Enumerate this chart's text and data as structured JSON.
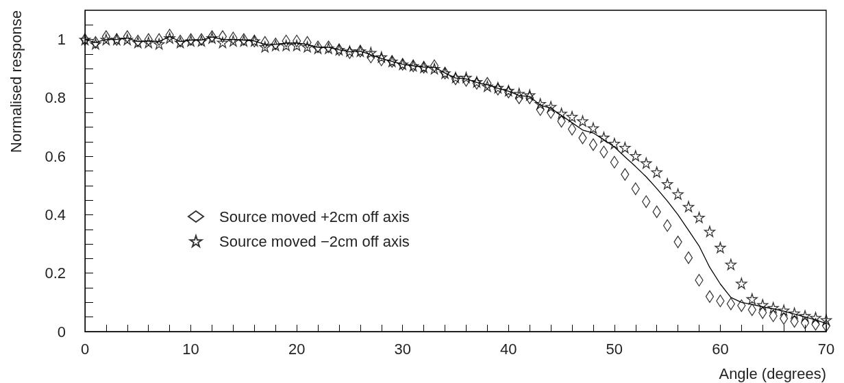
{
  "chart_data": {
    "type": "scatter",
    "xlabel": "Angle (degrees)",
    "ylabel": "Normalised response",
    "xlim": [
      0,
      70
    ],
    "xticks": [
      0,
      {
        "value": 2,
        "label": null
      },
      {
        "value": 4,
        "label": null
      },
      {
        "value": 6,
        "label": null
      },
      {
        "value": 8,
        "label": null
      },
      10,
      {
        "value": 12,
        "label": null
      },
      {
        "value": 14,
        "label": null
      },
      {
        "value": 16,
        "label": null
      },
      {
        "value": 18,
        "label": null
      },
      20,
      {
        "value": 22,
        "label": null
      },
      {
        "value": 24,
        "label": null
      },
      {
        "value": 26,
        "label": null
      },
      {
        "value": 28,
        "label": null
      },
      30,
      {
        "value": 32,
        "label": null
      },
      {
        "value": 34,
        "label": null
      },
      {
        "value": 36,
        "label": null
      },
      {
        "value": 38,
        "label": null
      },
      40,
      {
        "value": 42,
        "label": null
      },
      {
        "value": 44,
        "label": null
      },
      {
        "value": 46,
        "label": null
      },
      {
        "value": 48,
        "label": null
      },
      50,
      {
        "value": 52,
        "label": null
      },
      {
        "value": 54,
        "label": null
      },
      {
        "value": 56,
        "label": null
      },
      {
        "value": 58,
        "label": null
      },
      60,
      {
        "value": 62,
        "label": null
      },
      {
        "value": 64,
        "label": null
      },
      {
        "value": 66,
        "label": null
      },
      {
        "value": 68,
        "label": null
      },
      70
    ],
    "ylim": [
      0,
      1.1
    ],
    "yticks": [
      0,
      {
        "value": 0.05,
        "label": null
      },
      {
        "value": 0.1,
        "label": null
      },
      {
        "value": 0.15,
        "label": null
      },
      0.2,
      {
        "value": 0.25,
        "label": null
      },
      {
        "value": 0.3,
        "label": null
      },
      {
        "value": 0.35,
        "label": null
      },
      0.4,
      {
        "value": 0.45,
        "label": null
      },
      {
        "value": 0.5,
        "label": null
      },
      {
        "value": 0.55,
        "label": null
      },
      0.6,
      {
        "value": 0.65,
        "label": null
      },
      {
        "value": 0.7,
        "label": null
      },
      {
        "value": 0.75,
        "label": null
      },
      0.8,
      {
        "value": 0.85,
        "label": null
      },
      {
        "value": 0.9,
        "label": null
      },
      {
        "value": 0.95,
        "label": null
      },
      1,
      {
        "value": 1.05,
        "label": null
      }
    ],
    "grid": false,
    "legend": "left",
    "x": [
      0,
      1,
      2,
      3,
      4,
      5,
      6,
      7,
      8,
      9,
      10,
      11,
      12,
      13,
      14,
      15,
      16,
      17,
      18,
      19,
      20,
      21,
      22,
      23,
      24,
      25,
      26,
      27,
      28,
      29,
      30,
      31,
      32,
      33,
      34,
      35,
      36,
      37,
      38,
      39,
      40,
      41,
      42,
      43,
      44,
      45,
      46,
      47,
      48,
      49,
      50,
      51,
      52,
      53,
      54,
      55,
      56,
      57,
      58,
      59,
      60,
      61,
      62,
      63,
      64,
      65,
      66,
      67,
      68,
      69,
      70
    ],
    "series": [
      {
        "name": "Source moved +2cm off axis",
        "marker": "diamond",
        "color": "#000000",
        "values": [
          1.0,
          0.99,
          1.01,
          1.0,
          1.01,
          0.995,
          1.0,
          1.0,
          1.015,
          0.995,
          1.0,
          1.0,
          1.01,
          1.01,
          1.005,
          1.0,
          0.995,
          0.99,
          0.985,
          0.995,
          0.995,
          0.99,
          0.975,
          0.975,
          0.965,
          0.955,
          0.96,
          0.94,
          0.93,
          0.925,
          0.915,
          0.91,
          0.905,
          0.91,
          0.885,
          0.865,
          0.86,
          0.85,
          0.85,
          0.83,
          0.82,
          0.8,
          0.8,
          0.76,
          0.75,
          0.72,
          0.693,
          0.663,
          0.64,
          0.615,
          0.58,
          0.538,
          0.489,
          0.445,
          0.41,
          0.363,
          0.307,
          0.253,
          0.176,
          0.12,
          0.105,
          0.095,
          0.089,
          0.075,
          0.065,
          0.054,
          0.045,
          0.035,
          0.03,
          0.025,
          0.02
        ]
      },
      {
        "name": "Source moved −2cm off axis",
        "marker": "star",
        "color": "#000000",
        "values": [
          1.0,
          0.985,
          1.0,
          1.0,
          1.0,
          0.99,
          0.99,
          0.985,
          1.005,
          0.99,
          0.995,
          0.995,
          1.005,
          0.99,
          0.995,
          0.995,
          0.995,
          0.975,
          0.98,
          0.98,
          0.98,
          0.975,
          0.97,
          0.97,
          0.965,
          0.96,
          0.96,
          0.955,
          0.94,
          0.925,
          0.915,
          0.91,
          0.905,
          0.9,
          0.885,
          0.87,
          0.87,
          0.855,
          0.84,
          0.835,
          0.825,
          0.815,
          0.81,
          0.78,
          0.77,
          0.747,
          0.736,
          0.721,
          0.697,
          0.665,
          0.644,
          0.63,
          0.602,
          0.577,
          0.546,
          0.506,
          0.471,
          0.428,
          0.391,
          0.343,
          0.288,
          0.23,
          0.165,
          0.112,
          0.092,
          0.082,
          0.073,
          0.063,
          0.054,
          0.048,
          0.04
        ]
      },
      {
        "type": "line",
        "marker": "none",
        "line_style": "solid",
        "color": "#000000",
        "values": [
          1.0,
          0.99,
          1.0,
          1.0,
          1.005,
          0.993,
          0.995,
          0.993,
          1.01,
          0.993,
          0.998,
          0.998,
          1.008,
          1.0,
          1.0,
          0.998,
          0.995,
          0.983,
          0.983,
          0.988,
          0.988,
          0.983,
          0.973,
          0.973,
          0.965,
          0.958,
          0.96,
          0.948,
          0.935,
          0.925,
          0.915,
          0.91,
          0.905,
          0.905,
          0.885,
          0.868,
          0.865,
          0.853,
          0.845,
          0.833,
          0.823,
          0.808,
          0.805,
          0.775,
          0.765,
          0.74,
          0.715,
          0.69,
          0.68,
          0.657,
          0.632,
          0.598,
          0.565,
          0.53,
          0.49,
          0.447,
          0.4,
          0.347,
          0.293,
          0.22,
          0.163,
          0.117,
          0.1,
          0.093,
          0.085,
          0.078,
          0.07,
          0.06,
          0.05,
          0.04,
          0.028
        ]
      }
    ]
  }
}
